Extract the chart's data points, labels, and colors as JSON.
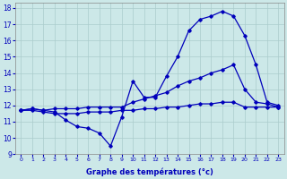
{
  "xlabel": "Graphe des températures (°c)",
  "bg_color": "#cce8e8",
  "line_color": "#0000bb",
  "grid_color": "#aacccc",
  "hours": [
    0,
    1,
    2,
    3,
    4,
    5,
    6,
    7,
    8,
    9,
    10,
    11,
    12,
    13,
    14,
    15,
    16,
    17,
    18,
    19,
    20,
    21,
    22,
    23
  ],
  "temp_line1": [
    11.7,
    11.8,
    11.7,
    11.6,
    11.1,
    10.7,
    10.6,
    10.3,
    9.5,
    11.3,
    13.5,
    12.5,
    12.5,
    13.8,
    15.0,
    16.6,
    17.3,
    17.5,
    17.8,
    17.5,
    16.3,
    14.5,
    12.2,
    12.0
  ],
  "temp_line2": [
    11.7,
    11.8,
    11.7,
    11.8,
    11.8,
    11.8,
    11.9,
    11.9,
    11.9,
    11.9,
    12.2,
    12.4,
    12.6,
    12.8,
    13.2,
    13.5,
    13.7,
    14.0,
    14.2,
    14.5,
    13.0,
    12.2,
    12.1,
    11.9
  ],
  "temp_line3": [
    11.7,
    11.7,
    11.6,
    11.5,
    11.5,
    11.5,
    11.6,
    11.6,
    11.6,
    11.7,
    11.7,
    11.8,
    11.8,
    11.9,
    11.9,
    12.0,
    12.1,
    12.1,
    12.2,
    12.2,
    11.9,
    11.9,
    11.9,
    11.9
  ],
  "ylim": [
    9,
    18.3
  ],
  "xlim": [
    -0.5,
    23.5
  ],
  "yticks": [
    9,
    10,
    11,
    12,
    13,
    14,
    15,
    16,
    17,
    18
  ],
  "xticks": [
    0,
    1,
    2,
    3,
    4,
    5,
    6,
    7,
    8,
    9,
    10,
    11,
    12,
    13,
    14,
    15,
    16,
    17,
    18,
    19,
    20,
    21,
    22,
    23
  ]
}
